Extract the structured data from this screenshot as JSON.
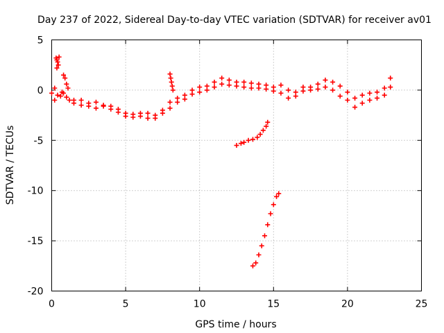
{
  "chart_data": {
    "type": "scatter",
    "title": "Day 237 of 2022, Sidereal Day-to-day VTEC variation (SDTVAR) for receiver av01",
    "xlabel": "GPS time / hours",
    "ylabel": "SDTVAR / TECUs",
    "xlim": [
      0,
      25
    ],
    "ylim": [
      -20,
      5
    ],
    "xticks": [
      0,
      5,
      10,
      15,
      20,
      25
    ],
    "yticks": [
      5,
      0,
      -5,
      -10,
      -15,
      -20
    ],
    "xtick_labels": [
      "0",
      "5",
      "10",
      "15",
      "20",
      "25"
    ],
    "ytick_labels": [
      "5",
      "0",
      "-5",
      "-10",
      "-15",
      "-20"
    ],
    "grid": true,
    "marker": "+",
    "color": "#ff0000",
    "series": [
      {
        "name": "main-trace-upper",
        "points": [
          [
            0.0,
            -0.3
          ],
          [
            0.2,
            0.2
          ],
          [
            0.4,
            -0.5
          ],
          [
            0.6,
            -0.6
          ],
          [
            0.8,
            -0.3
          ],
          [
            1.0,
            -0.7
          ],
          [
            1.2,
            -1.0
          ],
          [
            1.5,
            -1.0
          ],
          [
            2.0,
            -1.0
          ],
          [
            2.5,
            -1.3
          ],
          [
            3.0,
            -1.2
          ],
          [
            3.5,
            -1.5
          ],
          [
            4.0,
            -1.6
          ],
          [
            4.5,
            -1.9
          ],
          [
            5.0,
            -2.3
          ],
          [
            5.5,
            -2.4
          ],
          [
            6.0,
            -2.3
          ],
          [
            6.5,
            -2.3
          ],
          [
            7.0,
            -2.5
          ],
          [
            7.5,
            -2.0
          ],
          [
            8.0,
            -1.2
          ],
          [
            8.5,
            -0.8
          ],
          [
            9.0,
            -0.5
          ],
          [
            9.5,
            0.0
          ],
          [
            10.0,
            0.3
          ],
          [
            10.5,
            0.4
          ],
          [
            11.0,
            0.8
          ],
          [
            11.5,
            1.2
          ],
          [
            12.0,
            1.0
          ],
          [
            12.5,
            0.8
          ],
          [
            13.0,
            0.8
          ],
          [
            13.5,
            0.7
          ],
          [
            14.0,
            0.6
          ],
          [
            14.5,
            0.5
          ],
          [
            15.0,
            0.3
          ],
          [
            15.5,
            0.5
          ],
          [
            16.0,
            0.0
          ],
          [
            16.5,
            -0.2
          ],
          [
            17.0,
            0.3
          ],
          [
            17.5,
            0.3
          ],
          [
            18.0,
            0.6
          ],
          [
            18.5,
            1.0
          ],
          [
            19.0,
            0.8
          ],
          [
            19.5,
            0.4
          ],
          [
            20.0,
            -0.2
          ],
          [
            20.5,
            -0.8
          ],
          [
            21.0,
            -0.5
          ],
          [
            21.5,
            -0.3
          ],
          [
            22.0,
            -0.2
          ],
          [
            22.5,
            0.2
          ],
          [
            22.9,
            1.2
          ]
        ]
      },
      {
        "name": "main-trace-lower",
        "points": [
          [
            1.5,
            -1.3
          ],
          [
            2.0,
            -1.5
          ],
          [
            2.5,
            -1.6
          ],
          [
            3.0,
            -1.8
          ],
          [
            3.5,
            -1.6
          ],
          [
            4.0,
            -1.9
          ],
          [
            4.5,
            -2.2
          ],
          [
            5.0,
            -2.6
          ],
          [
            5.5,
            -2.7
          ],
          [
            6.0,
            -2.6
          ],
          [
            6.5,
            -2.8
          ],
          [
            7.0,
            -2.8
          ],
          [
            7.5,
            -2.3
          ],
          [
            8.0,
            -1.8
          ],
          [
            8.5,
            -1.2
          ],
          [
            9.0,
            -0.9
          ],
          [
            9.5,
            -0.4
          ],
          [
            10.0,
            -0.2
          ],
          [
            10.5,
            0.0
          ],
          [
            11.0,
            0.3
          ],
          [
            11.5,
            0.6
          ],
          [
            12.0,
            0.5
          ],
          [
            12.5,
            0.4
          ],
          [
            13.0,
            0.3
          ],
          [
            13.5,
            0.2
          ],
          [
            14.0,
            0.2
          ],
          [
            14.5,
            0.1
          ],
          [
            15.0,
            -0.1
          ],
          [
            15.5,
            -0.3
          ],
          [
            16.0,
            -0.8
          ],
          [
            16.5,
            -0.6
          ],
          [
            17.0,
            -0.1
          ],
          [
            17.5,
            0.0
          ],
          [
            18.0,
            0.1
          ],
          [
            18.5,
            0.3
          ],
          [
            19.0,
            0.0
          ],
          [
            19.5,
            -0.6
          ],
          [
            20.0,
            -1.0
          ],
          [
            20.5,
            -1.7
          ],
          [
            21.0,
            -1.3
          ],
          [
            21.5,
            -1.0
          ],
          [
            22.0,
            -0.8
          ],
          [
            22.5,
            -0.5
          ],
          [
            22.9,
            0.3
          ]
        ]
      },
      {
        "name": "early-spike",
        "points": [
          [
            0.3,
            3.2
          ],
          [
            0.35,
            3.0
          ],
          [
            0.4,
            2.8
          ],
          [
            0.45,
            2.5
          ],
          [
            0.5,
            3.3
          ],
          [
            0.35,
            2.2
          ],
          [
            0.8,
            1.5
          ],
          [
            0.9,
            1.2
          ],
          [
            1.0,
            0.6
          ],
          [
            1.1,
            0.2
          ],
          [
            0.7,
            -0.2
          ],
          [
            0.2,
            -1.0
          ]
        ]
      },
      {
        "name": "spike-hour-8",
        "points": [
          [
            8.0,
            1.6
          ],
          [
            8.05,
            1.2
          ],
          [
            8.1,
            0.8
          ],
          [
            8.15,
            0.4
          ],
          [
            8.2,
            0.0
          ]
        ]
      },
      {
        "name": "branch-hour-13-14",
        "points": [
          [
            12.5,
            -5.5
          ],
          [
            12.8,
            -5.3
          ],
          [
            13.0,
            -5.2
          ],
          [
            13.3,
            -5.0
          ],
          [
            13.6,
            -4.9
          ],
          [
            13.9,
            -4.7
          ],
          [
            14.1,
            -4.4
          ],
          [
            14.3,
            -4.0
          ],
          [
            14.5,
            -3.6
          ],
          [
            14.6,
            -3.2
          ]
        ]
      },
      {
        "name": "branch-hour-14-15",
        "points": [
          [
            13.6,
            -17.5
          ],
          [
            13.8,
            -17.2
          ],
          [
            14.0,
            -16.4
          ],
          [
            14.2,
            -15.5
          ],
          [
            14.4,
            -14.5
          ],
          [
            14.6,
            -13.4
          ],
          [
            14.8,
            -12.3
          ],
          [
            15.0,
            -11.4
          ],
          [
            15.2,
            -10.6
          ],
          [
            15.35,
            -10.3
          ]
        ]
      }
    ]
  }
}
